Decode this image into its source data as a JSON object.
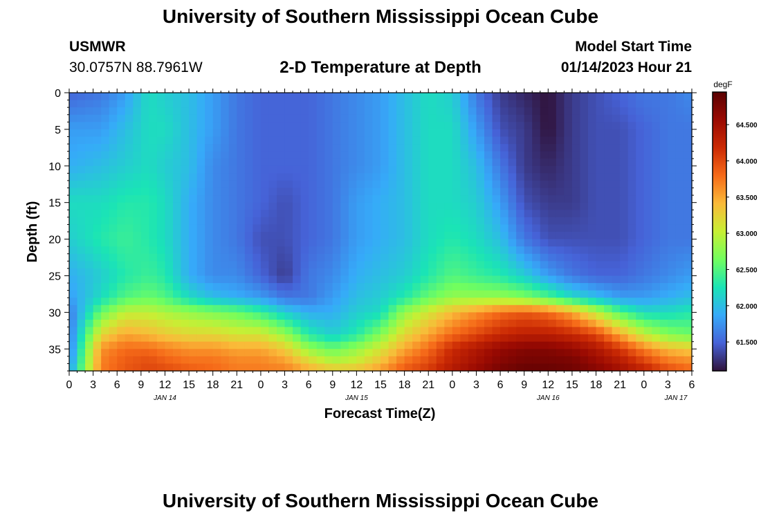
{
  "header": {
    "title": "University of Southern Mississippi Ocean Cube",
    "station": "USMWR",
    "coords": "30.0757N  88.7961W",
    "subtitle": "2-D Temperature at Depth",
    "model_start_label": "Model Start Time",
    "model_start_value": "01/14/2023 Hour 21",
    "footer_title": "University of Southern Mississippi Ocean Cube"
  },
  "chart_data": {
    "type": "heatmap",
    "title": "2-D Temperature at Depth",
    "xlabel": "Forecast Time(Z)",
    "ylabel": "Depth (ft)",
    "x_unit": "forecast hour from 01/14/2023 00Z",
    "xlim": [
      0,
      78
    ],
    "ylim": [
      0,
      38
    ],
    "y_inverted": true,
    "x_ticks": [
      0,
      3,
      6,
      9,
      12,
      15,
      18,
      21,
      24,
      27,
      30,
      33,
      36,
      39,
      42,
      45,
      48,
      51,
      54,
      57,
      60,
      63,
      66,
      69,
      72,
      75,
      78
    ],
    "x_tick_labels": [
      "0",
      "3",
      "6",
      "9",
      "12",
      "15",
      "18",
      "21",
      "0",
      "3",
      "6",
      "9",
      "12",
      "15",
      "18",
      "21",
      "0",
      "3",
      "6",
      "9",
      "12",
      "15",
      "18",
      "21",
      "0",
      "3",
      "6"
    ],
    "y_ticks": [
      0,
      5,
      10,
      15,
      20,
      25,
      30,
      35
    ],
    "day_labels": [
      {
        "hour": 12,
        "text": "JAN 14"
      },
      {
        "hour": 36,
        "text": "JAN 15"
      },
      {
        "hour": 60,
        "text": "JAN 16"
      },
      {
        "hour": 76,
        "text": "JAN 17"
      }
    ],
    "colorbar": {
      "unit": "degF",
      "range": [
        61.1,
        64.95
      ],
      "ticks": [
        61.5,
        62.0,
        62.5,
        63.0,
        63.5,
        64.0,
        64.5
      ],
      "tick_labels": [
        "61.500",
        "62.000",
        "62.500",
        "63.000",
        "63.500",
        "64.000",
        "64.500"
      ]
    },
    "grid": false,
    "legend": "colorbar-right",
    "x_hours": [
      0,
      4,
      7,
      10,
      12,
      15,
      18,
      21,
      24,
      27,
      30,
      33,
      36,
      39,
      42,
      45,
      48,
      51,
      54,
      57,
      60,
      63,
      66,
      69,
      72,
      75,
      78
    ],
    "depths": [
      0,
      5,
      10,
      15,
      20,
      25,
      28,
      30,
      33,
      35,
      37,
      38
    ],
    "values": [
      [
        61.5,
        61.8,
        61.9,
        62.2,
        62.1,
        61.9,
        61.8,
        61.6,
        61.6,
        61.6,
        61.7,
        61.8
      ],
      [
        61.6,
        61.8,
        62.0,
        62.2,
        62.3,
        62.1,
        62.2,
        62.6,
        63.2,
        63.6,
        63.7,
        63.7
      ],
      [
        61.8,
        62.0,
        62.1,
        62.3,
        62.4,
        62.3,
        62.5,
        63.0,
        63.5,
        63.8,
        63.9,
        63.9
      ],
      [
        62.2,
        62.2,
        62.2,
        62.3,
        62.3,
        62.4,
        62.6,
        63.0,
        63.4,
        63.8,
        64.0,
        64.0
      ],
      [
        62.1,
        62.2,
        62.1,
        62.2,
        62.2,
        62.3,
        62.5,
        62.9,
        63.3,
        63.7,
        63.9,
        64.0
      ],
      [
        62.0,
        62.0,
        62.0,
        61.9,
        61.9,
        61.9,
        62.2,
        62.8,
        63.2,
        63.6,
        63.8,
        63.9
      ],
      [
        61.8,
        61.8,
        61.7,
        61.7,
        61.7,
        61.7,
        62.0,
        62.7,
        63.2,
        63.6,
        63.8,
        63.8
      ],
      [
        61.6,
        61.6,
        61.6,
        61.6,
        61.6,
        61.7,
        61.9,
        62.6,
        63.1,
        63.5,
        63.7,
        63.7
      ],
      [
        61.5,
        61.5,
        61.5,
        61.5,
        61.4,
        61.5,
        61.8,
        62.4,
        63.1,
        63.5,
        63.7,
        63.7
      ],
      [
        61.5,
        61.5,
        61.5,
        61.4,
        61.4,
        61.3,
        61.6,
        62.1,
        62.8,
        63.3,
        63.6,
        63.7
      ],
      [
        61.5,
        61.5,
        61.5,
        61.5,
        61.5,
        61.6,
        61.6,
        61.9,
        62.3,
        62.8,
        63.3,
        63.5
      ],
      [
        61.6,
        61.6,
        61.6,
        61.6,
        61.6,
        61.7,
        61.8,
        61.9,
        62.1,
        62.6,
        63.0,
        63.4
      ],
      [
        61.7,
        61.7,
        61.7,
        61.8,
        61.8,
        61.9,
        62.0,
        62.1,
        62.3,
        62.8,
        63.1,
        63.4
      ],
      [
        61.8,
        61.8,
        61.8,
        61.9,
        61.9,
        62.0,
        62.1,
        62.2,
        62.7,
        63.1,
        63.4,
        63.6
      ],
      [
        62.0,
        62.0,
        62.0,
        62.0,
        62.0,
        62.1,
        62.3,
        62.8,
        63.2,
        63.5,
        63.8,
        63.9
      ],
      [
        62.2,
        62.2,
        62.2,
        62.2,
        62.2,
        62.3,
        62.6,
        63.1,
        63.5,
        63.8,
        64.0,
        64.1
      ],
      [
        62.1,
        62.2,
        62.2,
        62.2,
        62.3,
        62.5,
        62.8,
        63.4,
        63.8,
        64.2,
        64.3,
        64.4
      ],
      [
        61.6,
        61.8,
        62.0,
        62.1,
        62.2,
        62.4,
        62.8,
        63.6,
        64.0,
        64.4,
        64.5,
        64.6
      ],
      [
        61.3,
        61.4,
        61.6,
        61.8,
        62.0,
        62.3,
        62.8,
        63.8,
        64.2,
        64.6,
        64.7,
        64.8
      ],
      [
        61.2,
        61.3,
        61.3,
        61.4,
        61.6,
        62.1,
        62.7,
        63.9,
        64.3,
        64.7,
        64.8,
        64.9
      ],
      [
        61.1,
        61.1,
        61.2,
        61.3,
        61.4,
        61.8,
        62.5,
        63.8,
        64.3,
        64.7,
        64.8,
        64.9
      ],
      [
        61.3,
        61.3,
        61.3,
        61.3,
        61.4,
        61.6,
        62.2,
        63.5,
        64.2,
        64.6,
        64.8,
        64.8
      ],
      [
        61.4,
        61.4,
        61.4,
        61.4,
        61.4,
        61.5,
        62.0,
        63.0,
        64.0,
        64.4,
        64.6,
        64.7
      ],
      [
        61.5,
        61.4,
        61.4,
        61.4,
        61.4,
        61.5,
        61.8,
        62.5,
        63.5,
        64.1,
        64.4,
        64.5
      ],
      [
        61.6,
        61.5,
        61.5,
        61.5,
        61.5,
        61.6,
        61.8,
        62.2,
        63.0,
        63.7,
        64.1,
        64.3
      ],
      [
        61.6,
        61.6,
        61.6,
        61.6,
        61.6,
        61.7,
        61.9,
        62.2,
        62.7,
        63.4,
        63.8,
        64.0
      ],
      [
        61.7,
        61.6,
        61.6,
        61.6,
        61.6,
        61.8,
        62.0,
        62.3,
        62.6,
        63.3,
        63.7,
        63.8
      ]
    ]
  }
}
